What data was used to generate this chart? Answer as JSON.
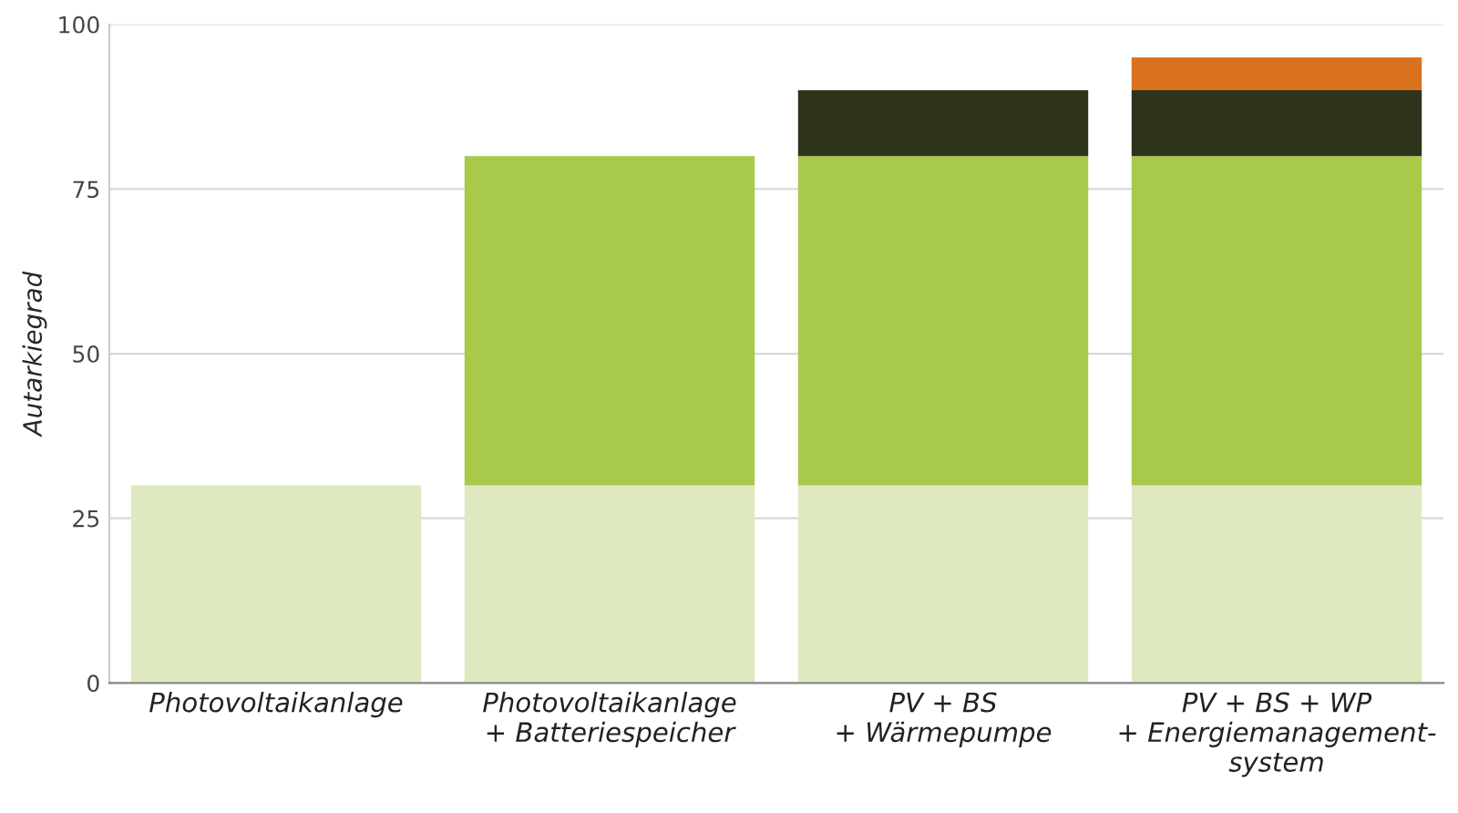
{
  "chart_data": {
    "type": "bar",
    "stacked": true,
    "ylabel": "Autarkiegrad",
    "categories": [
      "Photovoltaikanlage",
      "Photovoltaikanlage\n+ Batteriespeicher",
      "PV + BS\n+ Wärmepumpe",
      "PV + BS + WP\n+ Energiemanagement-\nsystem"
    ],
    "series": [
      {
        "color": "#dfe9c0",
        "values": [
          30,
          30,
          30,
          30
        ]
      },
      {
        "color": "#a8c94a",
        "values": [
          null,
          50,
          50,
          50
        ]
      },
      {
        "color": "#2e331c",
        "values": [
          null,
          null,
          10,
          10
        ]
      },
      {
        "color": "#d9711f",
        "values": [
          null,
          null,
          null,
          5
        ]
      }
    ],
    "ylim": [
      0,
      100
    ],
    "yticks": [
      0,
      25,
      50,
      75,
      100
    ],
    "grid": "y"
  }
}
